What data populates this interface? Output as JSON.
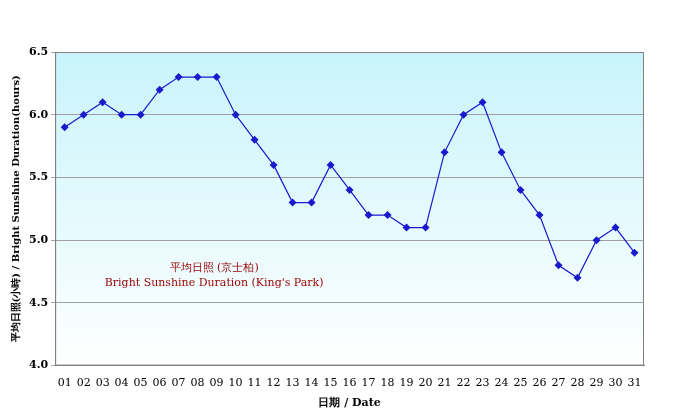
{
  "chart_data": {
    "type": "line",
    "y_label": "平均日照(小時) / Bright Sunshine Duration(hours)",
    "x_label": "日期 / Date",
    "annotations": [
      "平均日照 (京士柏)",
      "Bright Sunshine Duration (King's Park)"
    ],
    "categories": [
      "01",
      "02",
      "03",
      "04",
      "05",
      "06",
      "07",
      "08",
      "09",
      "10",
      "11",
      "12",
      "13",
      "14",
      "15",
      "16",
      "17",
      "18",
      "19",
      "20",
      "21",
      "22",
      "23",
      "24",
      "25",
      "26",
      "27",
      "28",
      "29",
      "30",
      "31"
    ],
    "values": [
      5.9,
      6.0,
      6.1,
      6.0,
      6.0,
      6.2,
      6.3,
      6.3,
      6.3,
      6.0,
      5.8,
      5.6,
      5.3,
      5.3,
      5.6,
      5.4,
      5.2,
      5.2,
      5.1,
      5.1,
      5.7,
      6.0,
      6.1,
      5.7,
      5.4,
      5.2,
      4.8,
      4.7,
      5.0,
      5.1,
      4.9
    ],
    "color": "#1a1acc",
    "marker": "diamond",
    "ylim": [
      4.0,
      6.5
    ],
    "yticks": [
      {
        "value": 4.0,
        "label": "4.0"
      },
      4.5,
      {
        "value": 5.0,
        "label": "5.0"
      },
      5.5,
      {
        "value": 6.0,
        "label": "6.0"
      },
      6.5
    ],
    "grid": true
  }
}
